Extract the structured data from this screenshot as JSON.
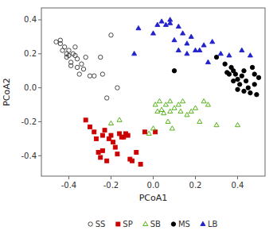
{
  "chart_data": {
    "type": "scatter",
    "xlabel": "PCoA1",
    "ylabel": "PCoA2",
    "xlim": [
      -0.53,
      0.53
    ],
    "ylim": [
      -0.52,
      0.47
    ],
    "xticks": [
      -0.4,
      -0.2,
      {
        "value": 0.0,
        "label": "0.0"
      },
      0.2,
      0.4
    ],
    "yticks": [
      -0.4,
      -0.2,
      {
        "value": 0.0,
        "label": "0.0"
      },
      0.2,
      0.4
    ],
    "grid": false,
    "legend": "bottom",
    "series": [
      {
        "name": "SS",
        "color": "#333333",
        "marker": "open-circle",
        "x": [
          -0.46,
          -0.44,
          -0.44,
          -0.43,
          -0.42,
          -0.41,
          -0.41,
          -0.4,
          -0.4,
          -0.39,
          -0.39,
          -0.38,
          -0.37,
          -0.37,
          -0.36,
          -0.36,
          -0.35,
          -0.34,
          -0.33,
          -0.32,
          -0.3,
          -0.28,
          -0.25,
          -0.24,
          -0.22,
          -0.2,
          -0.17
        ],
        "values": [
          0.27,
          0.28,
          0.26,
          0.22,
          0.24,
          0.2,
          0.18,
          0.22,
          0.19,
          0.15,
          0.13,
          0.2,
          0.24,
          0.19,
          0.12,
          0.17,
          0.08,
          0.14,
          0.11,
          0.18,
          0.07,
          0.07,
          0.18,
          0.08,
          -0.06,
          0.31,
          0.0
        ]
      },
      {
        "name": "SP",
        "color": "#cc0000",
        "marker": "square",
        "x": [
          -0.32,
          -0.3,
          -0.28,
          -0.27,
          -0.26,
          -0.25,
          -0.24,
          -0.24,
          -0.23,
          -0.22,
          -0.21,
          -0.2,
          -0.19,
          -0.18,
          -0.17,
          -0.16,
          -0.15,
          -0.14,
          -0.13,
          -0.12,
          -0.11,
          -0.1,
          -0.08,
          -0.06,
          -0.04,
          0.01
        ],
        "values": [
          -0.19,
          -0.23,
          -0.26,
          -0.3,
          -0.38,
          -0.41,
          -0.28,
          -0.37,
          -0.25,
          -0.43,
          -0.3,
          -0.28,
          -0.32,
          -0.35,
          -0.39,
          -0.27,
          -0.29,
          -0.29,
          -0.27,
          -0.28,
          -0.42,
          -0.43,
          -0.38,
          -0.45,
          -0.26,
          -0.26
        ]
      },
      {
        "name": "SB",
        "color": "#44aa00",
        "marker": "open-triangle",
        "x": [
          -0.2,
          -0.16,
          -0.02,
          0.0,
          0.01,
          0.02,
          0.03,
          0.04,
          0.05,
          0.06,
          0.07,
          0.08,
          0.08,
          0.09,
          0.1,
          0.12,
          0.13,
          0.14,
          0.16,
          0.18,
          0.2,
          0.22,
          0.24,
          0.26,
          0.3,
          0.4
        ],
        "values": [
          -0.21,
          -0.19,
          -0.27,
          -0.24,
          -0.1,
          -0.14,
          -0.08,
          -0.13,
          -0.15,
          -0.1,
          -0.2,
          -0.08,
          -0.14,
          -0.24,
          -0.12,
          -0.1,
          -0.14,
          -0.08,
          -0.16,
          -0.14,
          -0.12,
          -0.2,
          -0.08,
          -0.1,
          -0.22,
          -0.22
        ]
      },
      {
        "name": "MS",
        "color": "#000000",
        "marker": "circle",
        "x": [
          0.1,
          0.3,
          0.34,
          0.35,
          0.36,
          0.37,
          0.38,
          0.38,
          0.39,
          0.4,
          0.4,
          0.41,
          0.42,
          0.43,
          0.43,
          0.44,
          0.45,
          0.46,
          0.47,
          0.48,
          0.48,
          0.49,
          0.5
        ],
        "values": [
          0.1,
          0.18,
          0.14,
          0.09,
          0.08,
          0.12,
          0.04,
          0.1,
          0.08,
          -0.01,
          0.05,
          0.02,
          0.07,
          0.1,
          -0.02,
          0.04,
          0.0,
          -0.03,
          0.12,
          0.08,
          0.02,
          -0.04,
          0.06
        ]
      },
      {
        "name": "LB",
        "color": "#2222cc",
        "marker": "triangle",
        "x": [
          -0.09,
          -0.07,
          0.0,
          0.02,
          0.04,
          0.06,
          0.08,
          0.08,
          0.1,
          0.12,
          0.12,
          0.14,
          0.16,
          0.16,
          0.18,
          0.2,
          0.22,
          0.24,
          0.26,
          0.28,
          0.32,
          0.36,
          0.42,
          0.46
        ],
        "values": [
          0.2,
          0.35,
          0.32,
          0.37,
          0.39,
          0.37,
          0.38,
          0.4,
          0.28,
          0.36,
          0.22,
          0.32,
          0.26,
          0.2,
          0.3,
          0.22,
          0.22,
          0.25,
          0.15,
          0.27,
          0.2,
          0.19,
          0.22,
          0.19
        ]
      }
    ]
  }
}
